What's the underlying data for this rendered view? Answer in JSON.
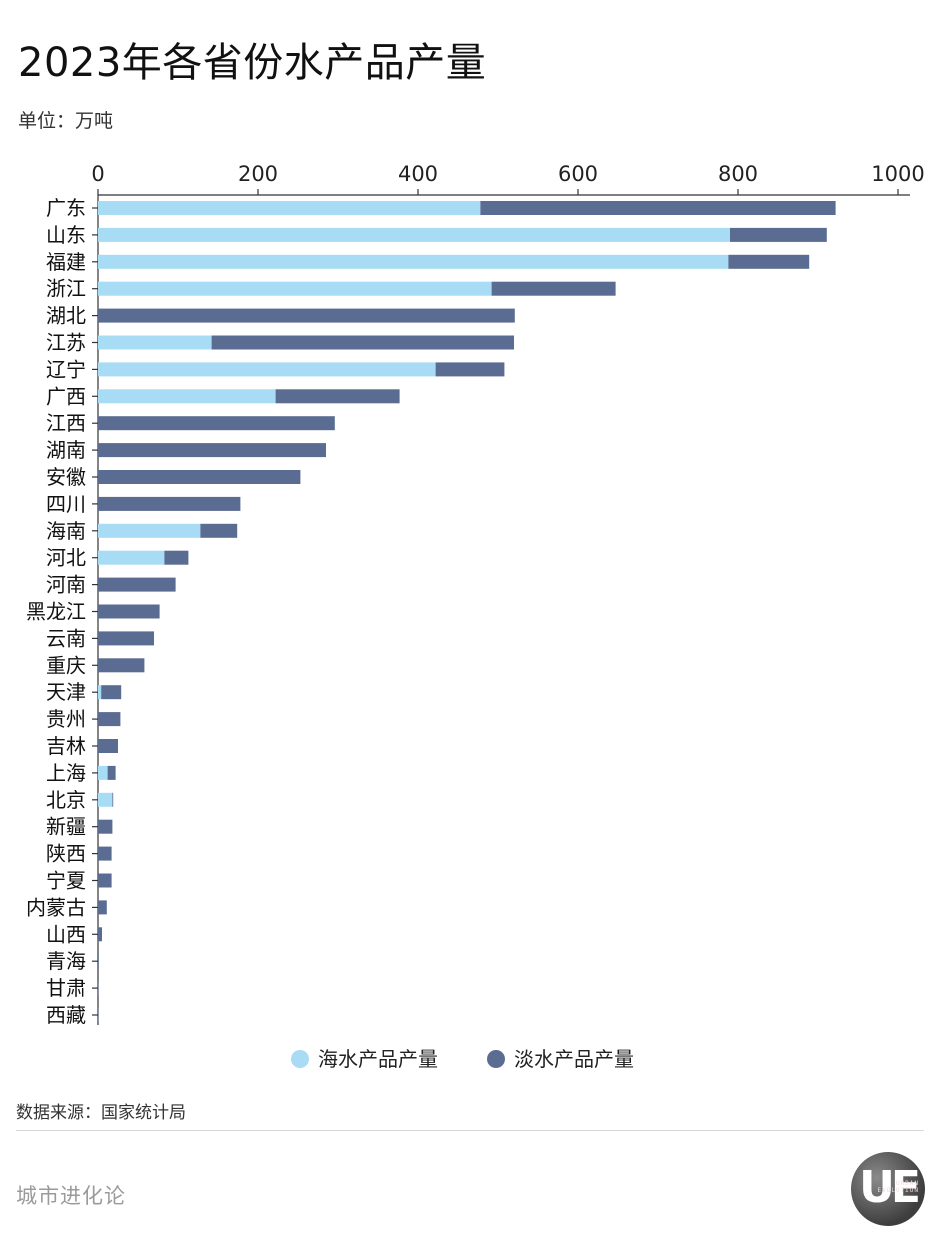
{
  "title": "2023年各省份水产品产量",
  "unit": "单位：万吨",
  "source": "数据来源：国家统计局",
  "footer_brand": "城市进化论",
  "logo": {
    "text": "UE",
    "subtext_line1": "URBAN",
    "subtext_line2": "EVOLUTION"
  },
  "colors": {
    "seawater": "#a8dcf5",
    "freshwater": "#5a6c91",
    "axis": "#333333",
    "text": "#1a1a1a"
  },
  "chart_data": {
    "type": "bar",
    "orientation": "horizontal",
    "stacked": true,
    "title": "2023年各省份水产品产量",
    "unit": "单位：万吨",
    "xlim": [
      0,
      1000
    ],
    "xticks": [
      0,
      200,
      400,
      600,
      800,
      1000
    ],
    "xaxis_position": "top",
    "grid": false,
    "legend_position": "bottom-center",
    "categories": [
      "广东",
      "山东",
      "福建",
      "浙江",
      "湖北",
      "江苏",
      "辽宁",
      "广西",
      "江西",
      "湖南",
      "安徽",
      "四川",
      "海南",
      "河北",
      "河南",
      "黑龙江",
      "云南",
      "重庆",
      "天津",
      "贵州",
      "吉林",
      "上海",
      "北京",
      "新疆",
      "陕西",
      "宁夏",
      "内蒙古",
      "山西",
      "青海",
      "甘肃",
      "西藏"
    ],
    "series": [
      {
        "name": "海水产品产量",
        "values": [
          478,
          790,
          788,
          492,
          0,
          142,
          422,
          222,
          0,
          0,
          0,
          0,
          128,
          83,
          0,
          0,
          0,
          0,
          4,
          0,
          0,
          12,
          18,
          0,
          0,
          0,
          0,
          0,
          0,
          0,
          0
        ]
      },
      {
        "name": "淡水产品产量",
        "values": [
          444,
          121,
          101,
          155,
          521,
          378,
          86,
          155,
          296,
          285,
          253,
          178,
          46,
          30,
          97,
          77,
          70,
          58,
          25,
          28,
          25,
          10,
          1,
          18,
          17,
          17,
          11,
          5,
          1,
          0.5,
          0.1
        ]
      }
    ]
  }
}
